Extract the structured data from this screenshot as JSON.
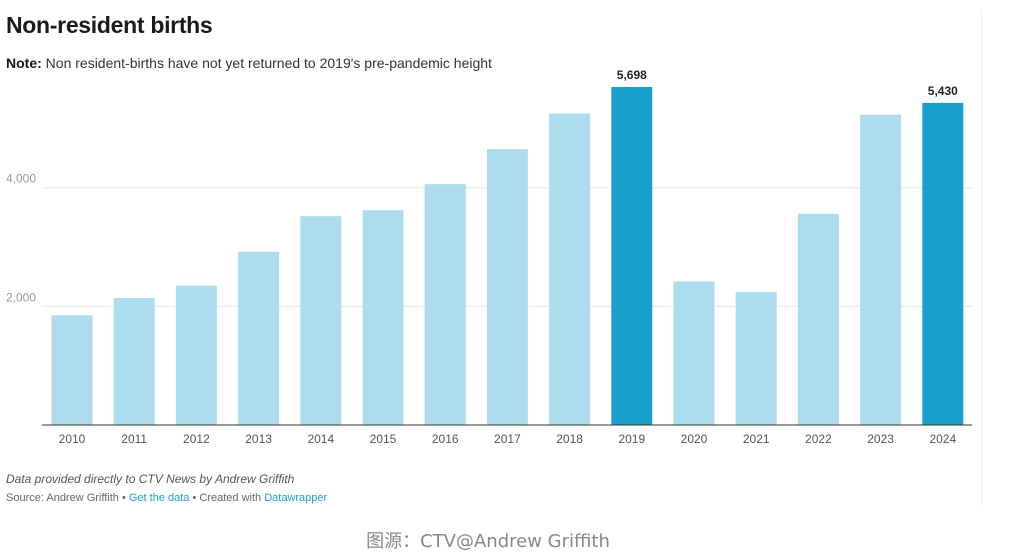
{
  "header": {
    "title": "Non-resident births",
    "note_label": "Note:",
    "note_text": " Non resident-births have not yet returned to 2019's pre-pandemic height"
  },
  "chart_data": {
    "type": "bar",
    "categories": [
      "2010",
      "2011",
      "2012",
      "2013",
      "2014",
      "2015",
      "2016",
      "2017",
      "2018",
      "2019",
      "2020",
      "2021",
      "2022",
      "2023",
      "2024"
    ],
    "values": [
      1850,
      2140,
      2350,
      2920,
      3520,
      3620,
      4060,
      4650,
      5250,
      5698,
      2420,
      2240,
      3560,
      5230,
      5430
    ],
    "highlighted": [
      "2019",
      "2024"
    ],
    "data_labels": {
      "2019": "5,698",
      "2024": "5,430"
    },
    "y_ticks": [
      2000,
      4000
    ],
    "y_tick_labels": [
      "2,000",
      "4,000"
    ],
    "ylim": [
      0,
      5900
    ],
    "grid": true,
    "colors": {
      "bar": "#acdcee",
      "highlight": "#189fcc",
      "grid": "#e6e6e6",
      "axis": "#333333"
    }
  },
  "footer": {
    "credit": "Data provided directly to CTV News by Andrew Griffith",
    "source_prefix": "Source: Andrew Griffith • ",
    "get_data": "Get the data",
    "created_prefix": " • Created with ",
    "datawrapper": "Datawrapper"
  },
  "caption": "图源：CTV@Andrew Griffith"
}
